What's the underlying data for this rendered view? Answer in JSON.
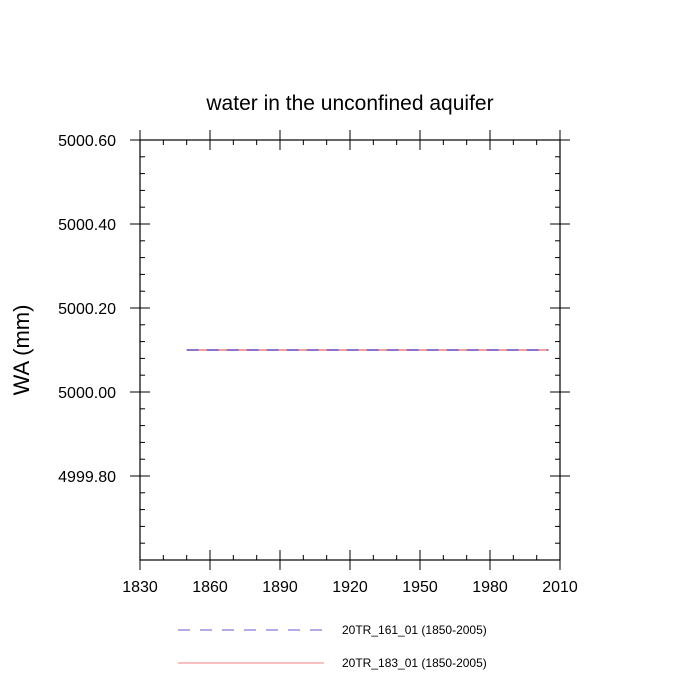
{
  "chart_data": {
    "type": "line",
    "title": "water in the unconfined aquifer",
    "xlabel": "",
    "ylabel": "WA  (mm)",
    "xlim": [
      1830,
      2010
    ],
    "ylim": [
      4999.6,
      5000.6
    ],
    "x_ticks": [
      1830,
      1860,
      1890,
      1920,
      1950,
      1980,
      2010
    ],
    "x_tick_labels": [
      "1830",
      "1860",
      "1890",
      "1920",
      "1950",
      "1980",
      "2010"
    ],
    "y_ticks": [
      4999.8,
      5000.0,
      5000.2,
      5000.4,
      5000.6
    ],
    "y_tick_labels": [
      "4999.80",
      "5000.00",
      "5000.20",
      "5000.40",
      "5000.60"
    ],
    "x_minor_step": 10,
    "y_minor_step": 0.04,
    "grid": false,
    "legend_position": "bottom",
    "series": [
      {
        "name": "20TR_161_01 (1850-2005)",
        "color": "#6a5acd",
        "dash": "dashed",
        "x": [
          1850,
          2005
        ],
        "y": [
          5000.1,
          5000.1
        ]
      },
      {
        "name": "20TR_183_01 (1850-2005)",
        "color": "#f08080",
        "dash": "solid",
        "x": [
          1850,
          2005
        ],
        "y": [
          5000.1,
          5000.1
        ]
      }
    ]
  }
}
